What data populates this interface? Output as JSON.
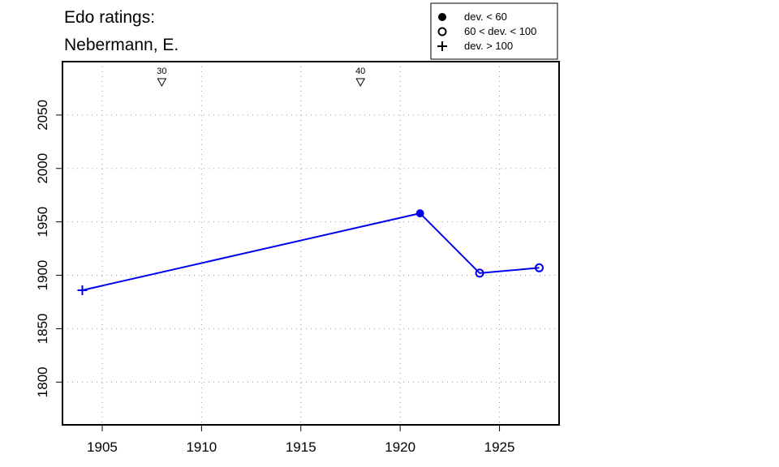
{
  "chart_data": {
    "type": "line",
    "title_lines": [
      "Edo ratings:",
      "Nebermann, E."
    ],
    "xlabel": "",
    "ylabel": "",
    "xlim": [
      1903,
      1928
    ],
    "ylim": [
      1760,
      2100
    ],
    "xticks": [
      1905,
      1910,
      1915,
      1920,
      1925
    ],
    "yticks": [
      1800,
      1850,
      1900,
      1950,
      2000,
      2050
    ],
    "grid": "dotted",
    "line_color": "#0000ee",
    "legend_position": "top-right",
    "legend": [
      {
        "symbol": "filled-circle",
        "label": "dev. < 60"
      },
      {
        "symbol": "open-circle",
        "label": "60 < dev. < 100"
      },
      {
        "symbol": "plus",
        "label": "dev. > 100"
      }
    ],
    "series": [
      {
        "points": [
          {
            "x": 1904,
            "y": 1886,
            "symbol": "plus"
          },
          {
            "x": 1921,
            "y": 1958,
            "symbol": "filled-circle"
          },
          {
            "x": 1924,
            "y": 1902,
            "symbol": "open-circle"
          },
          {
            "x": 1927,
            "y": 1907,
            "symbol": "open-circle"
          }
        ]
      }
    ],
    "age_markers": [
      {
        "x": 1908,
        "label": "30"
      },
      {
        "x": 1918,
        "label": "40"
      }
    ]
  }
}
